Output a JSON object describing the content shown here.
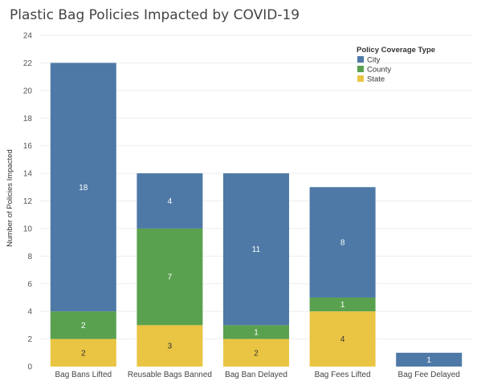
{
  "chart_data": {
    "type": "bar",
    "stacked": true,
    "title": "Plastic Bag Policies Impacted by COVID-19",
    "xlabel": "",
    "ylabel": "Number of Policies Impacted",
    "ylim": [
      0,
      24
    ],
    "yticks": [
      0,
      2,
      4,
      6,
      8,
      10,
      12,
      14,
      16,
      18,
      20,
      22,
      24
    ],
    "grid": true,
    "legend_placement": "top-right",
    "legend_title": "Policy Coverage Type",
    "categories": [
      "Bag Bans Lifted",
      "Reusable Bags Banned",
      "Bag Ban Delayed",
      "Bag Fees Lifted",
      "Bag Fee Delayed"
    ],
    "series": [
      {
        "name": "State",
        "color": "#eac543",
        "values": [
          2,
          3,
          2,
          4,
          0
        ]
      },
      {
        "name": "County",
        "color": "#59a14f",
        "values": [
          2,
          7,
          1,
          1,
          0
        ]
      },
      {
        "name": "City",
        "color": "#4e79a7",
        "values": [
          18,
          4,
          11,
          8,
          1
        ]
      }
    ],
    "legend_order": [
      "City",
      "County",
      "State"
    ]
  }
}
